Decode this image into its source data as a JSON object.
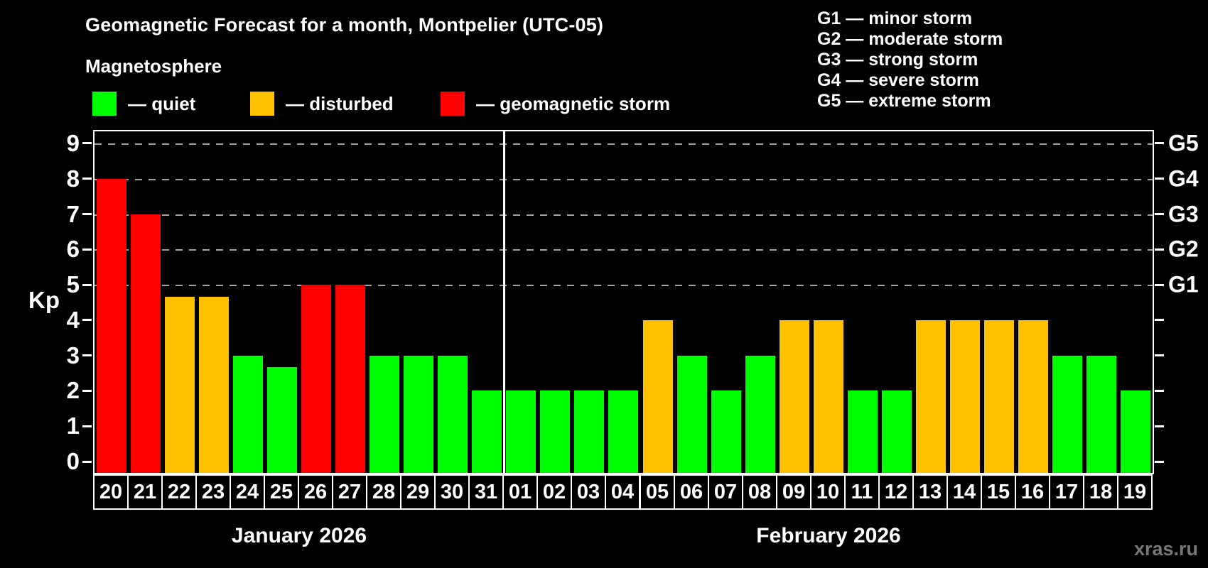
{
  "title": "Geomagnetic Forecast for a month, Montpelier (UTC-05)",
  "subtitle": "Magnetosphere",
  "legend": [
    {
      "status": "quiet",
      "color": "#00ff00",
      "label": "— quiet"
    },
    {
      "status": "disturbed",
      "color": "#ffc000",
      "label": "— disturbed"
    },
    {
      "status": "storm",
      "color": "#ff0000",
      "label": "— geomagnetic storm"
    }
  ],
  "storm_scale": [
    "G1 — minor storm",
    "G2 — moderate storm",
    "G3 — strong storm",
    "G4 — severe storm",
    "G5 — extreme storm"
  ],
  "axis": {
    "ylabel": "Kp",
    "yticks": [
      0,
      1,
      2,
      3,
      4,
      5,
      6,
      7,
      8,
      9
    ],
    "grid_kps": [
      5,
      6,
      7,
      8,
      9
    ],
    "right_labels": [
      {
        "kp": 5,
        "text": "G1"
      },
      {
        "kp": 6,
        "text": "G2"
      },
      {
        "kp": 7,
        "text": "G3"
      },
      {
        "kp": 8,
        "text": "G4"
      },
      {
        "kp": 9,
        "text": "G5"
      }
    ]
  },
  "watermark": "xras.ru",
  "chart_data": {
    "type": "bar",
    "title": "Geomagnetic Forecast for a month, Montpelier (UTC-05)",
    "xlabel": "",
    "ylabel": "Kp",
    "ylim": [
      0,
      9.4
    ],
    "grid": "dashed horizontal at Kp 5-9 only",
    "legend_position": "top-left",
    "status_colors": {
      "quiet": "#00ff00",
      "disturbed": "#ffc000",
      "storm": "#ff0000"
    },
    "months": [
      {
        "label": "January 2026",
        "days": [
          "20",
          "21",
          "22",
          "23",
          "24",
          "25",
          "26",
          "27",
          "28",
          "29",
          "30",
          "31"
        ],
        "values": [
          8,
          7,
          4.67,
          4.67,
          3,
          2.67,
          5,
          5,
          3,
          3,
          3,
          2
        ],
        "status": [
          "storm",
          "storm",
          "disturbed",
          "disturbed",
          "quiet",
          "quiet",
          "storm",
          "storm",
          "quiet",
          "quiet",
          "quiet",
          "quiet"
        ]
      },
      {
        "label": "February 2026",
        "days": [
          "01",
          "02",
          "03",
          "04",
          "05",
          "06",
          "07",
          "08",
          "09",
          "10",
          "11",
          "12",
          "13",
          "14",
          "15",
          "16",
          "17",
          "18",
          "19"
        ],
        "values": [
          2,
          2,
          2,
          2,
          4,
          3,
          2,
          3,
          4,
          4,
          2,
          2,
          4,
          4,
          4,
          4,
          3,
          3,
          2
        ],
        "status": [
          "quiet",
          "quiet",
          "quiet",
          "quiet",
          "disturbed",
          "quiet",
          "quiet",
          "quiet",
          "disturbed",
          "disturbed",
          "quiet",
          "quiet",
          "disturbed",
          "disturbed",
          "disturbed",
          "disturbed",
          "quiet",
          "quiet",
          "quiet"
        ]
      }
    ]
  }
}
